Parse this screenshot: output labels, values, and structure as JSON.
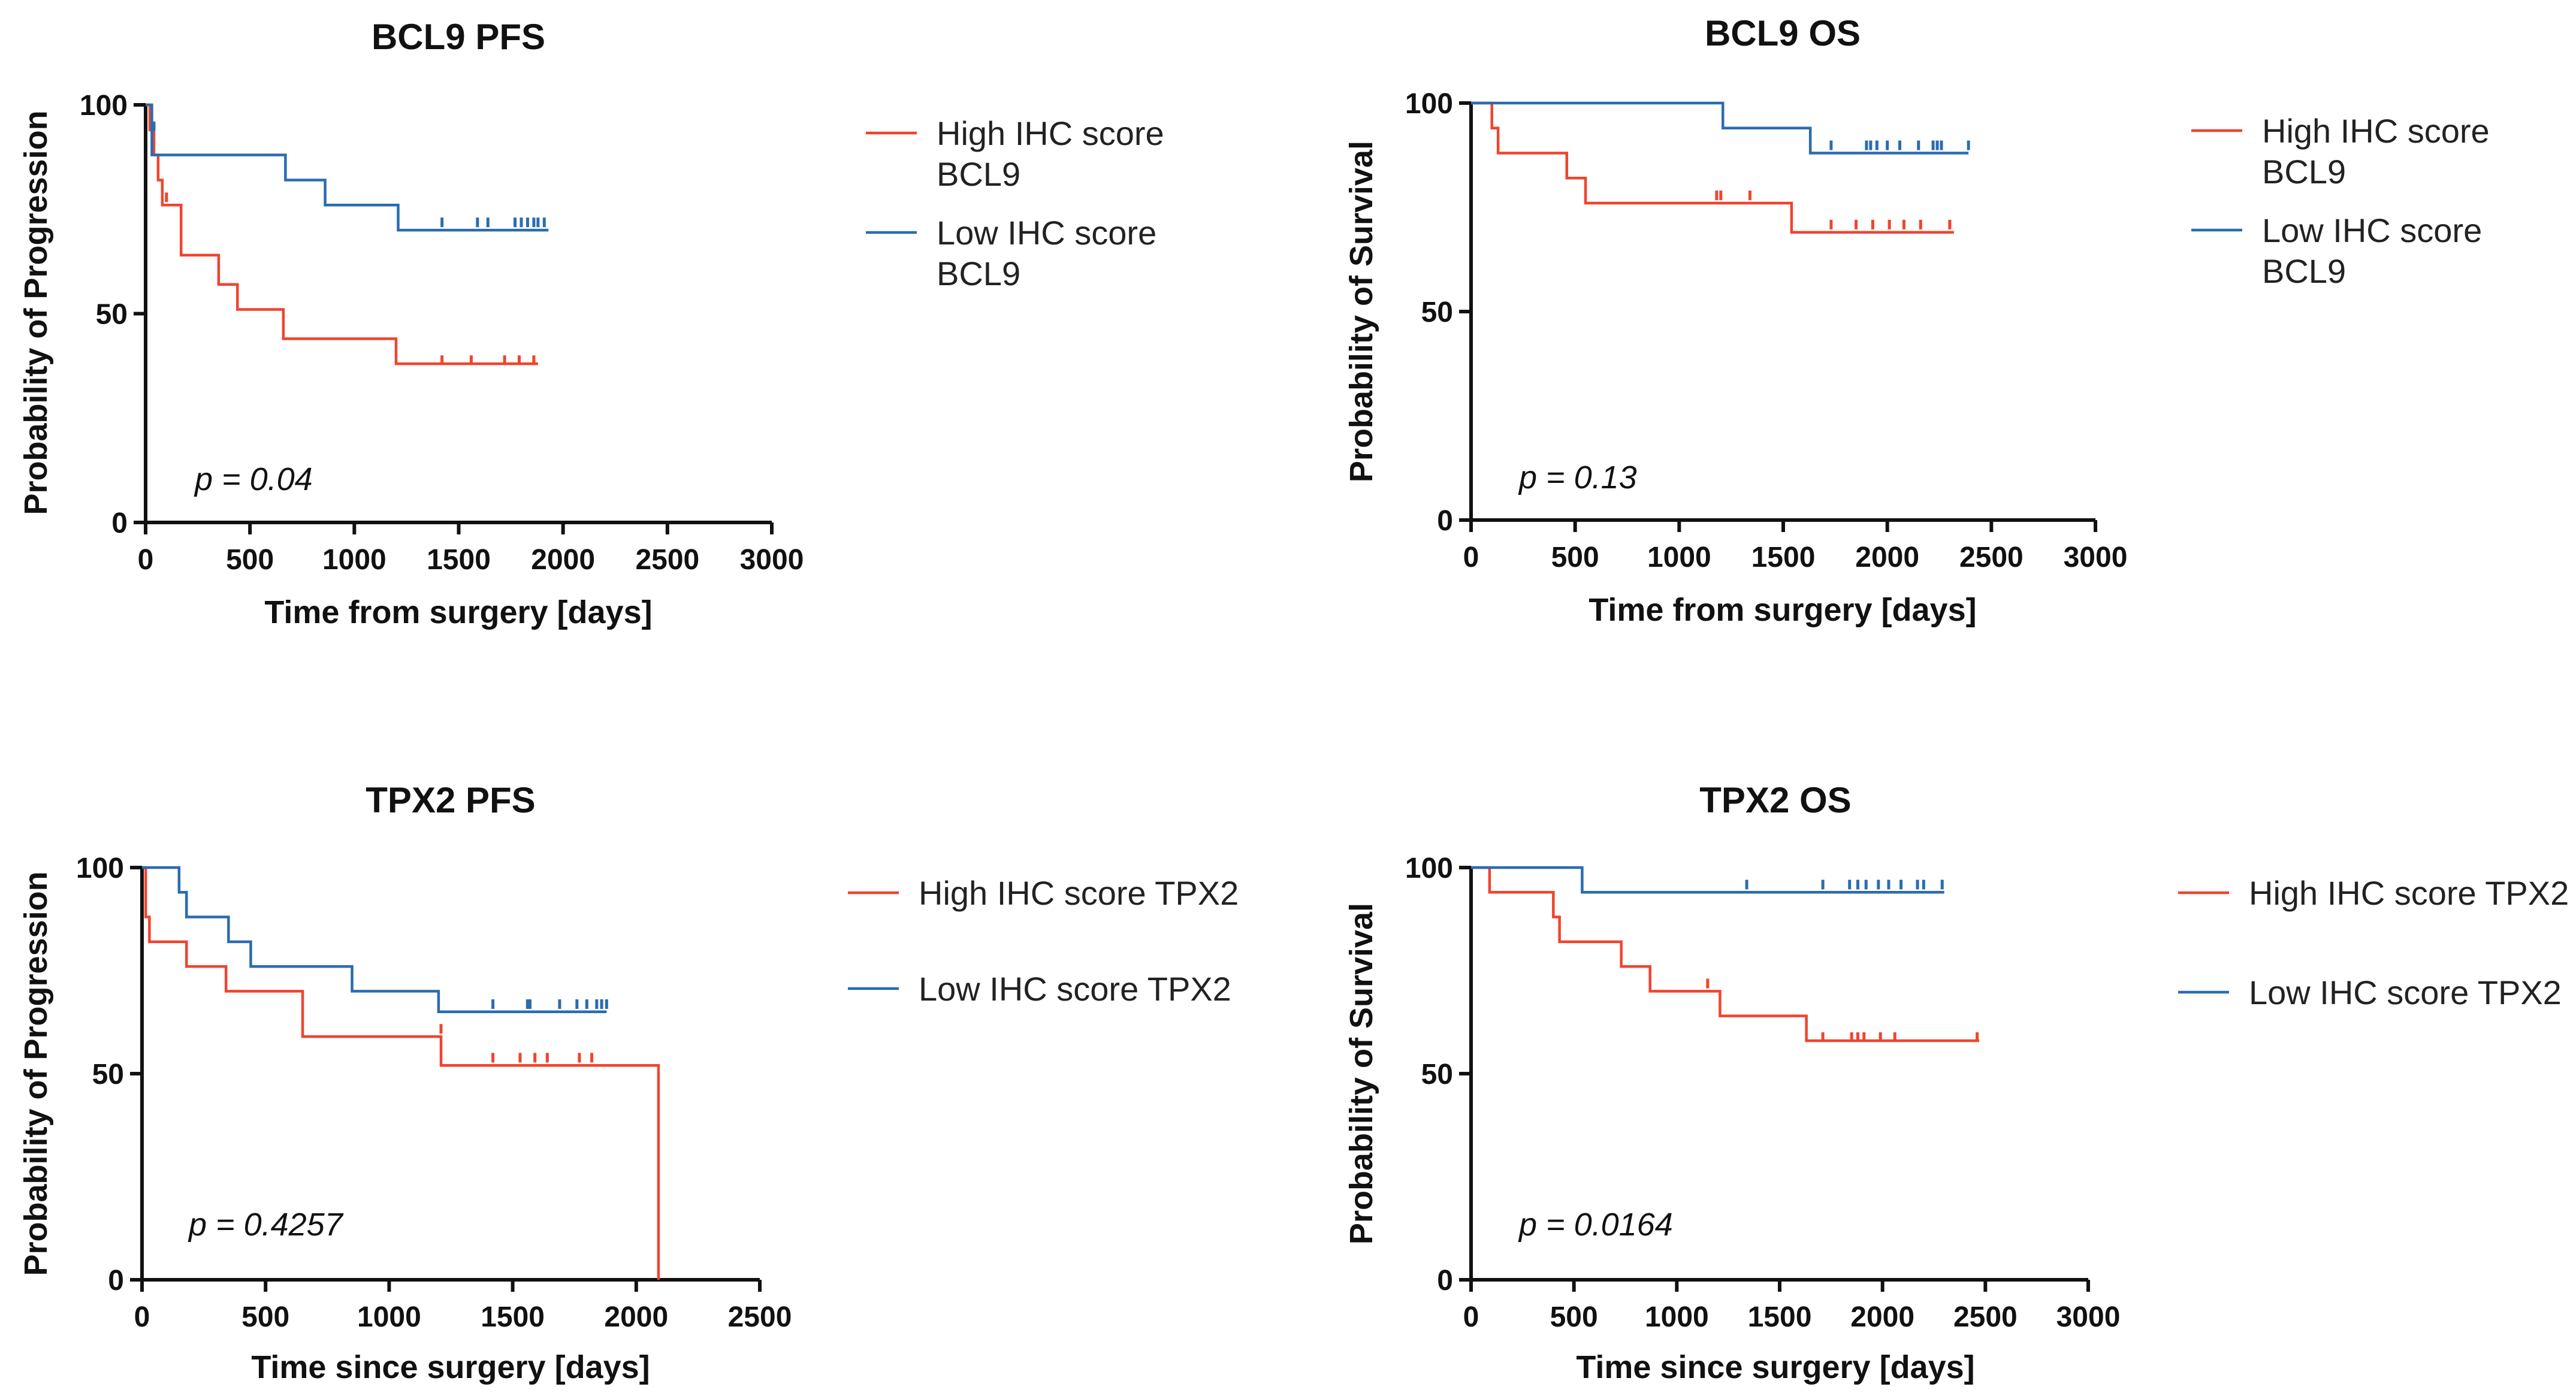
{
  "colors": {
    "high": "#f0442e",
    "low": "#2a6cb0",
    "axis": "#111111"
  },
  "chart_data": [
    {
      "type": "line",
      "subtype": "kaplan-meier",
      "title": "BCL9 PFS",
      "xlabel": "Time from surgery [days]",
      "ylabel": "Probability of Progression",
      "xlim": [
        0,
        3000
      ],
      "ylim": [
        0,
        100
      ],
      "xticks": [
        0,
        500,
        1000,
        1500,
        2000,
        2500,
        3000
      ],
      "yticks": [
        0,
        50,
        100
      ],
      "pvalue": "p = 0.04",
      "series": [
        {
          "name": "High IHC score BCL9",
          "legend_lines": [
            "High IHC score",
            "BCL9"
          ],
          "color_key": "high",
          "steps": [
            [
              0,
              100
            ],
            [
              20,
              94
            ],
            [
              40,
              88
            ],
            [
              60,
              82
            ],
            [
              80,
              76
            ],
            [
              170,
              64
            ],
            [
              350,
              57
            ],
            [
              440,
              51
            ],
            [
              660,
              44
            ],
            [
              1200,
              38
            ],
            [
              1880,
              38
            ]
          ],
          "censored": [
            [
              100,
              77
            ],
            [
              1420,
              38
            ],
            [
              1560,
              38
            ],
            [
              1720,
              38
            ],
            [
              1790,
              38
            ],
            [
              1860,
              38
            ]
          ]
        },
        {
          "name": "Low IHC score BCL9",
          "legend_lines": [
            "Low IHC score",
            "BCL9"
          ],
          "color_key": "low",
          "steps": [
            [
              0,
              100
            ],
            [
              30,
              88
            ],
            [
              670,
              82
            ],
            [
              860,
              76
            ],
            [
              1210,
              70
            ],
            [
              1930,
              70
            ]
          ],
          "censored": [
            [
              40,
              94
            ],
            [
              1420,
              71
            ],
            [
              1590,
              71
            ],
            [
              1640,
              71
            ],
            [
              1770,
              71
            ],
            [
              1800,
              71
            ],
            [
              1830,
              71
            ],
            [
              1860,
              71
            ],
            [
              1880,
              71
            ],
            [
              1910,
              71
            ]
          ]
        }
      ]
    },
    {
      "type": "line",
      "subtype": "kaplan-meier",
      "title": "BCL9 OS",
      "xlabel": "Time from surgery [days]",
      "ylabel": "Probability of Survival",
      "xlim": [
        0,
        3000
      ],
      "ylim": [
        0,
        100
      ],
      "xticks": [
        0,
        500,
        1000,
        1500,
        2000,
        2500,
        3000
      ],
      "yticks": [
        0,
        50,
        100
      ],
      "pvalue": "p = 0.13",
      "series": [
        {
          "name": "High IHC score BCL9",
          "legend_lines": [
            "High IHC score",
            "BCL9"
          ],
          "color_key": "high",
          "steps": [
            [
              0,
              100
            ],
            [
              100,
              94
            ],
            [
              130,
              88
            ],
            [
              460,
              82
            ],
            [
              550,
              76
            ],
            [
              1540,
              69
            ],
            [
              2320,
              69
            ]
          ],
          "censored": [
            [
              1180,
              77
            ],
            [
              1200,
              77
            ],
            [
              1340,
              77
            ],
            [
              1730,
              70
            ],
            [
              1850,
              70
            ],
            [
              1930,
              70
            ],
            [
              2010,
              70
            ],
            [
              2080,
              70
            ],
            [
              2160,
              70
            ],
            [
              2300,
              70
            ]
          ]
        },
        {
          "name": "Low IHC score BCL9",
          "legend_lines": [
            "Low IHC score",
            "BCL9"
          ],
          "color_key": "low",
          "steps": [
            [
              0,
              100
            ],
            [
              1210,
              94
            ],
            [
              1630,
              88
            ],
            [
              2390,
              88
            ]
          ],
          "censored": [
            [
              1730,
              89
            ],
            [
              1900,
              89
            ],
            [
              1920,
              89
            ],
            [
              1950,
              89
            ],
            [
              2000,
              89
            ],
            [
              2060,
              89
            ],
            [
              2150,
              89
            ],
            [
              2220,
              89
            ],
            [
              2240,
              89
            ],
            [
              2260,
              89
            ],
            [
              2390,
              89
            ]
          ]
        }
      ]
    },
    {
      "type": "line",
      "subtype": "kaplan-meier",
      "title": "TPX2 PFS",
      "xlabel": "Time since surgery [days]",
      "ylabel": "Probability of Progression",
      "xlim": [
        0,
        2500
      ],
      "ylim": [
        0,
        100
      ],
      "xticks": [
        0,
        500,
        1000,
        1500,
        2000,
        2500
      ],
      "yticks": [
        0,
        50,
        100
      ],
      "pvalue": "p = 0.4257",
      "series": [
        {
          "name": "High IHC score TPX2",
          "legend_lines": [
            "High IHC score TPX2"
          ],
          "color_key": "high",
          "steps": [
            [
              0,
              100
            ],
            [
              15,
              88
            ],
            [
              30,
              82
            ],
            [
              180,
              76
            ],
            [
              340,
              70
            ],
            [
              650,
              59
            ],
            [
              1210,
              52
            ],
            [
              2090,
              52
            ],
            [
              2090,
              0
            ]
          ],
          "censored": [
            [
              1210,
              60
            ],
            [
              1420,
              53
            ],
            [
              1530,
              53
            ],
            [
              1590,
              53
            ],
            [
              1640,
              53
            ],
            [
              1770,
              53
            ],
            [
              1820,
              53
            ]
          ]
        },
        {
          "name": "Low IHC score TPX2",
          "legend_lines": [
            "Low IHC score TPX2"
          ],
          "color_key": "low",
          "steps": [
            [
              0,
              100
            ],
            [
              150,
              94
            ],
            [
              180,
              88
            ],
            [
              350,
              82
            ],
            [
              440,
              76
            ],
            [
              850,
              70
            ],
            [
              1200,
              65
            ],
            [
              1880,
              65
            ]
          ],
          "censored": [
            [
              1420,
              66
            ],
            [
              1560,
              66
            ],
            [
              1570,
              66
            ],
            [
              1690,
              66
            ],
            [
              1760,
              66
            ],
            [
              1800,
              66
            ],
            [
              1840,
              66
            ],
            [
              1860,
              66
            ],
            [
              1880,
              66
            ]
          ]
        }
      ]
    },
    {
      "type": "line",
      "subtype": "kaplan-meier",
      "title": "TPX2 OS",
      "xlabel": "Time since surgery [days]",
      "ylabel": "Probability of Survival",
      "xlim": [
        0,
        3000
      ],
      "ylim": [
        0,
        100
      ],
      "xticks": [
        0,
        500,
        1000,
        1500,
        2000,
        2500,
        3000
      ],
      "yticks": [
        0,
        50,
        100
      ],
      "pvalue": "p = 0.0164",
      "series": [
        {
          "name": "High IHC score TPX2",
          "legend_lines": [
            "High IHC score TPX2"
          ],
          "color_key": "high",
          "steps": [
            [
              0,
              100
            ],
            [
              90,
              94
            ],
            [
              400,
              88
            ],
            [
              430,
              82
            ],
            [
              730,
              76
            ],
            [
              870,
              70
            ],
            [
              1210,
              64
            ],
            [
              1630,
              58
            ],
            [
              2470,
              58
            ]
          ],
          "censored": [
            [
              1150,
              71
            ],
            [
              1710,
              58
            ],
            [
              1850,
              58
            ],
            [
              1880,
              58
            ],
            [
              1910,
              58
            ],
            [
              1990,
              58
            ],
            [
              2060,
              58
            ],
            [
              2460,
              58
            ]
          ]
        },
        {
          "name": "Low IHC score TPX2",
          "legend_lines": [
            "Low IHC score TPX2"
          ],
          "color_key": "low",
          "steps": [
            [
              0,
              100
            ],
            [
              540,
              94
            ],
            [
              2300,
              94
            ]
          ],
          "censored": [
            [
              1340,
              95
            ],
            [
              1710,
              95
            ],
            [
              1840,
              95
            ],
            [
              1880,
              95
            ],
            [
              1920,
              95
            ],
            [
              1980,
              95
            ],
            [
              2030,
              95
            ],
            [
              2090,
              95
            ],
            [
              2170,
              95
            ],
            [
              2200,
              95
            ],
            [
              2290,
              95
            ]
          ]
        }
      ]
    }
  ]
}
